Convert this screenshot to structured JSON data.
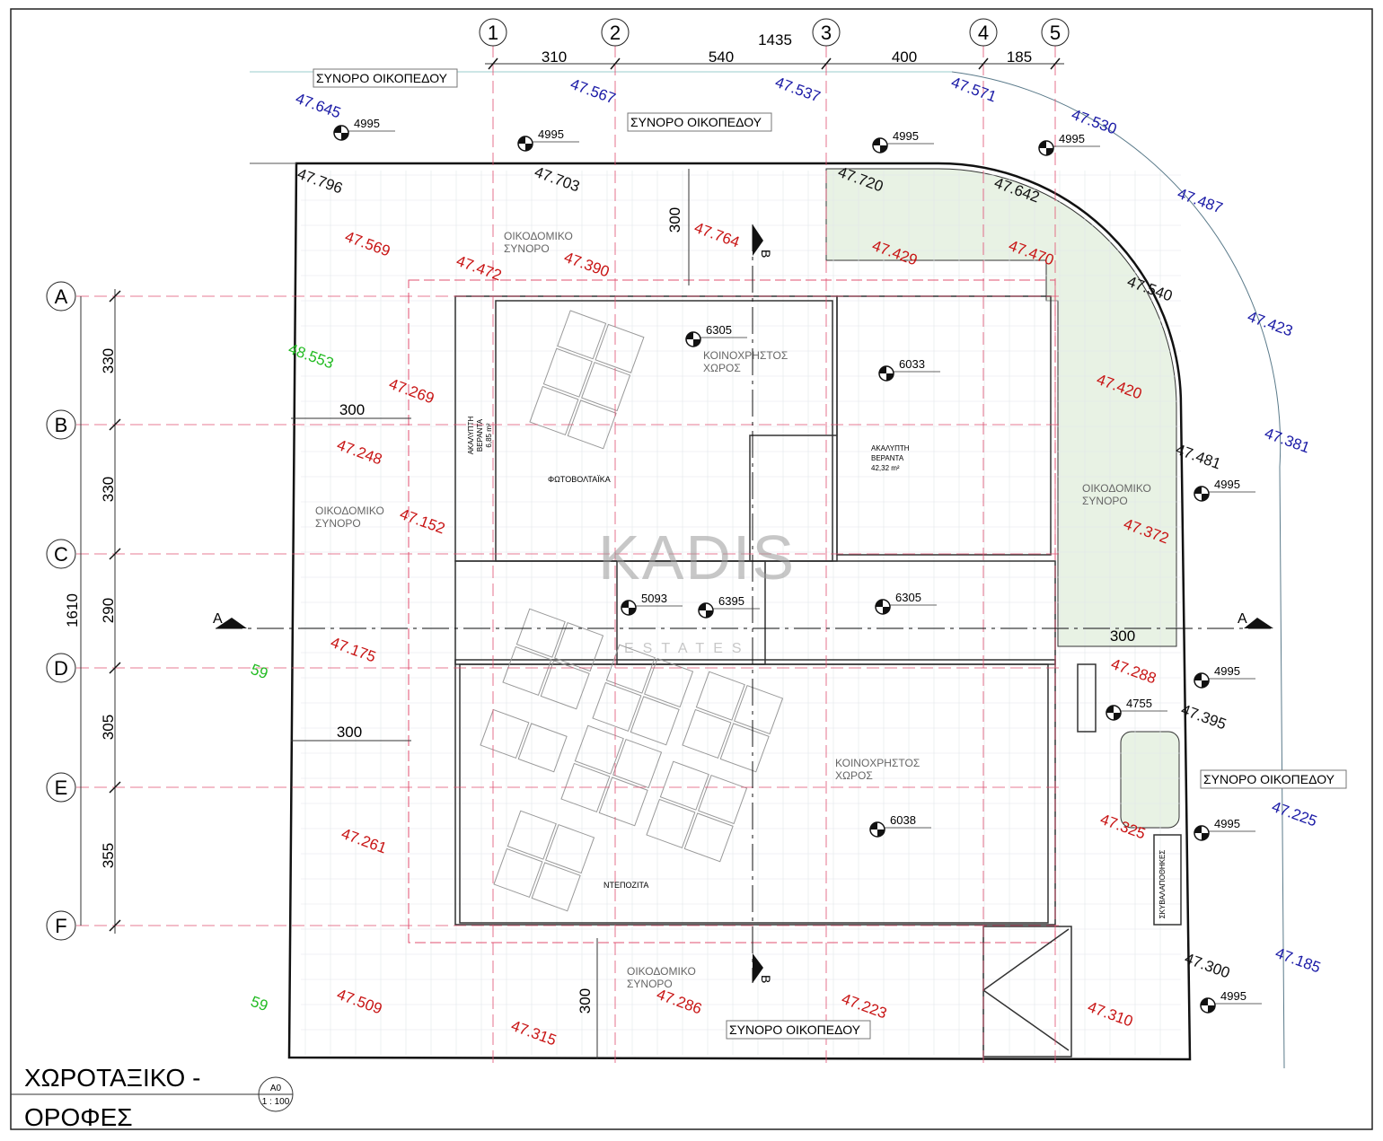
{
  "title": {
    "line1": "ΧΩΡΟΤΑΞΙΚΟ -",
    "line2": "ΟΡΟΦΕΣ",
    "sheet": "A0",
    "scale": "1 : 100"
  },
  "watermark": {
    "brand": "KADIS",
    "sub": "ESTATES"
  },
  "colors": {
    "outside": "#1a1aa6",
    "boundary": "#111111",
    "inside": "#c81414",
    "reference": "#22bb22",
    "gridline": "#e05070",
    "planting": "#e8f2e4"
  },
  "grid": {
    "columns": [
      "1",
      "2",
      "3",
      "4",
      "5"
    ],
    "column_dims": [
      "310",
      "540",
      "400",
      "185"
    ],
    "column_total": "1435",
    "rows": [
      "A",
      "B",
      "C",
      "D",
      "E",
      "F"
    ],
    "row_dims": [
      "330",
      "330",
      "290",
      "305",
      "355"
    ],
    "row_total": "1610"
  },
  "dimensions": [
    "300",
    "300",
    "300",
    "300",
    "300"
  ],
  "section_marks": {
    "horizontal": "A",
    "vertical": "B"
  },
  "labels": {
    "plot_boundary": [
      "ΣΥΝΟΡΟ ΟΙΚΟΠΕΔΟΥ",
      "ΣΥΝΟΡΟ ΟΙΚΟΠΕΔΟΥ",
      "ΣΥΝΟΡΟ ΟΙΚΟΠΕΔΟΥ",
      "ΣΥΝΟΡΟ ΟΙΚΟΠΕΔΟΥ"
    ],
    "building_line": [
      "ΟΙΚΟΔΟΜΙΚΟ",
      "ΣΥΝΟΡΟ"
    ],
    "common_area": [
      "ΚΟΙΝΟΧΡΗΣΤΟΣ",
      "ΧΩΡΟΣ"
    ],
    "photovoltaics": "ΦΩΤΟΒΟΛΤΑΪΚΑ",
    "tanks": "ΝΤΕΠΟΖΙΤΑ",
    "veranda_small": [
      "ΑΚΑΛΥΠΤΗ",
      "ΒΕΡΑΝΤΑ",
      "6,85 m²"
    ],
    "veranda_large": [
      "ΑΚΑΛΥΠΤΗ",
      "ΒΕΡΑΝΤΑ",
      "42,32 m²"
    ],
    "bin_store": "ΣΚΥΒΑΛΑΠΟΘΗΚΕΣ"
  },
  "levels": [
    "4995",
    "4995",
    "4995",
    "4995",
    "4995",
    "4995",
    "4995",
    "4995",
    "6305",
    "6033",
    "5093",
    "6395",
    "6305",
    "6038",
    "4755"
  ],
  "elevations": {
    "outside": [
      "47.645",
      "47.567",
      "47.537",
      "47.571",
      "47.530",
      "47.487",
      "47.423",
      "47.381",
      "47.225",
      "47.185"
    ],
    "boundary": [
      "47.796",
      "47.703",
      "47.720",
      "47.642",
      "47.540",
      "47.481",
      "47.395",
      "47.300"
    ],
    "inside": [
      "47.569",
      "47.472",
      "47.390",
      "47.764",
      "47.429",
      "47.470",
      "47.420",
      "47.269",
      "47.248",
      "47.152",
      "47.372",
      "47.175",
      "47.288",
      "47.325",
      "47.261",
      "47.509",
      "47.315",
      "47.286",
      "47.223",
      "47.310"
    ],
    "reference": [
      "48.553",
      "59",
      "59"
    ]
  }
}
